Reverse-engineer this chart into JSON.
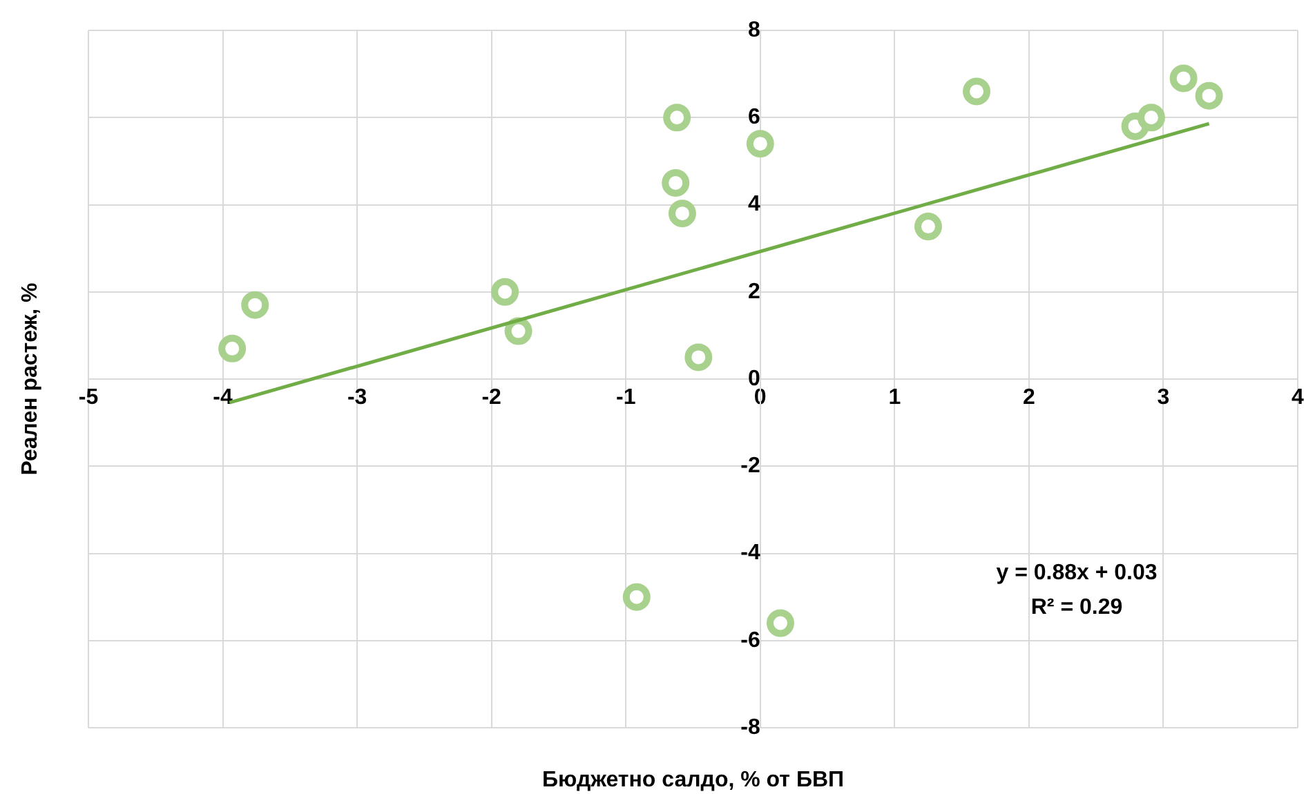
{
  "chart_data": {
    "type": "scatter",
    "xlabel": "Бюджетно салдо, % от БВП",
    "ylabel": "Реален растеж, %",
    "series": [
      {
        "color": "#a9d18e",
        "marker": "circle",
        "x": [
          -3.93,
          -3.76,
          -1.9,
          -1.8,
          -0.92,
          -0.62,
          -0.63,
          -0.58,
          -0.46,
          0.0,
          0.15,
          1.25,
          1.61,
          2.79,
          2.91,
          3.15,
          3.34
        ],
        "values": [
          0.7,
          1.7,
          2.0,
          1.1,
          -5.0,
          6.0,
          4.5,
          3.8,
          0.5,
          5.4,
          -5.6,
          3.5,
          6.6,
          5.8,
          6.0,
          6.9,
          6.5
        ]
      },
      {
        "type": "line",
        "color": "#70ad47",
        "marker": "none",
        "x": [
          -3.95,
          3.34
        ],
        "values": [
          -0.54,
          5.86
        ]
      }
    ],
    "xlim": [
      -5,
      4
    ],
    "xticks": [
      -5,
      -4,
      -3,
      -2,
      -1,
      0,
      1,
      2,
      3,
      4
    ],
    "ylim": [
      -8,
      8
    ],
    "yticks": [
      -8,
      -6,
      -4,
      -2,
      0,
      2,
      4,
      6,
      8
    ],
    "grid": true,
    "legend": false,
    "annotations": [
      "y = 0.88x + 0.03",
      "R² = 0.29"
    ]
  }
}
